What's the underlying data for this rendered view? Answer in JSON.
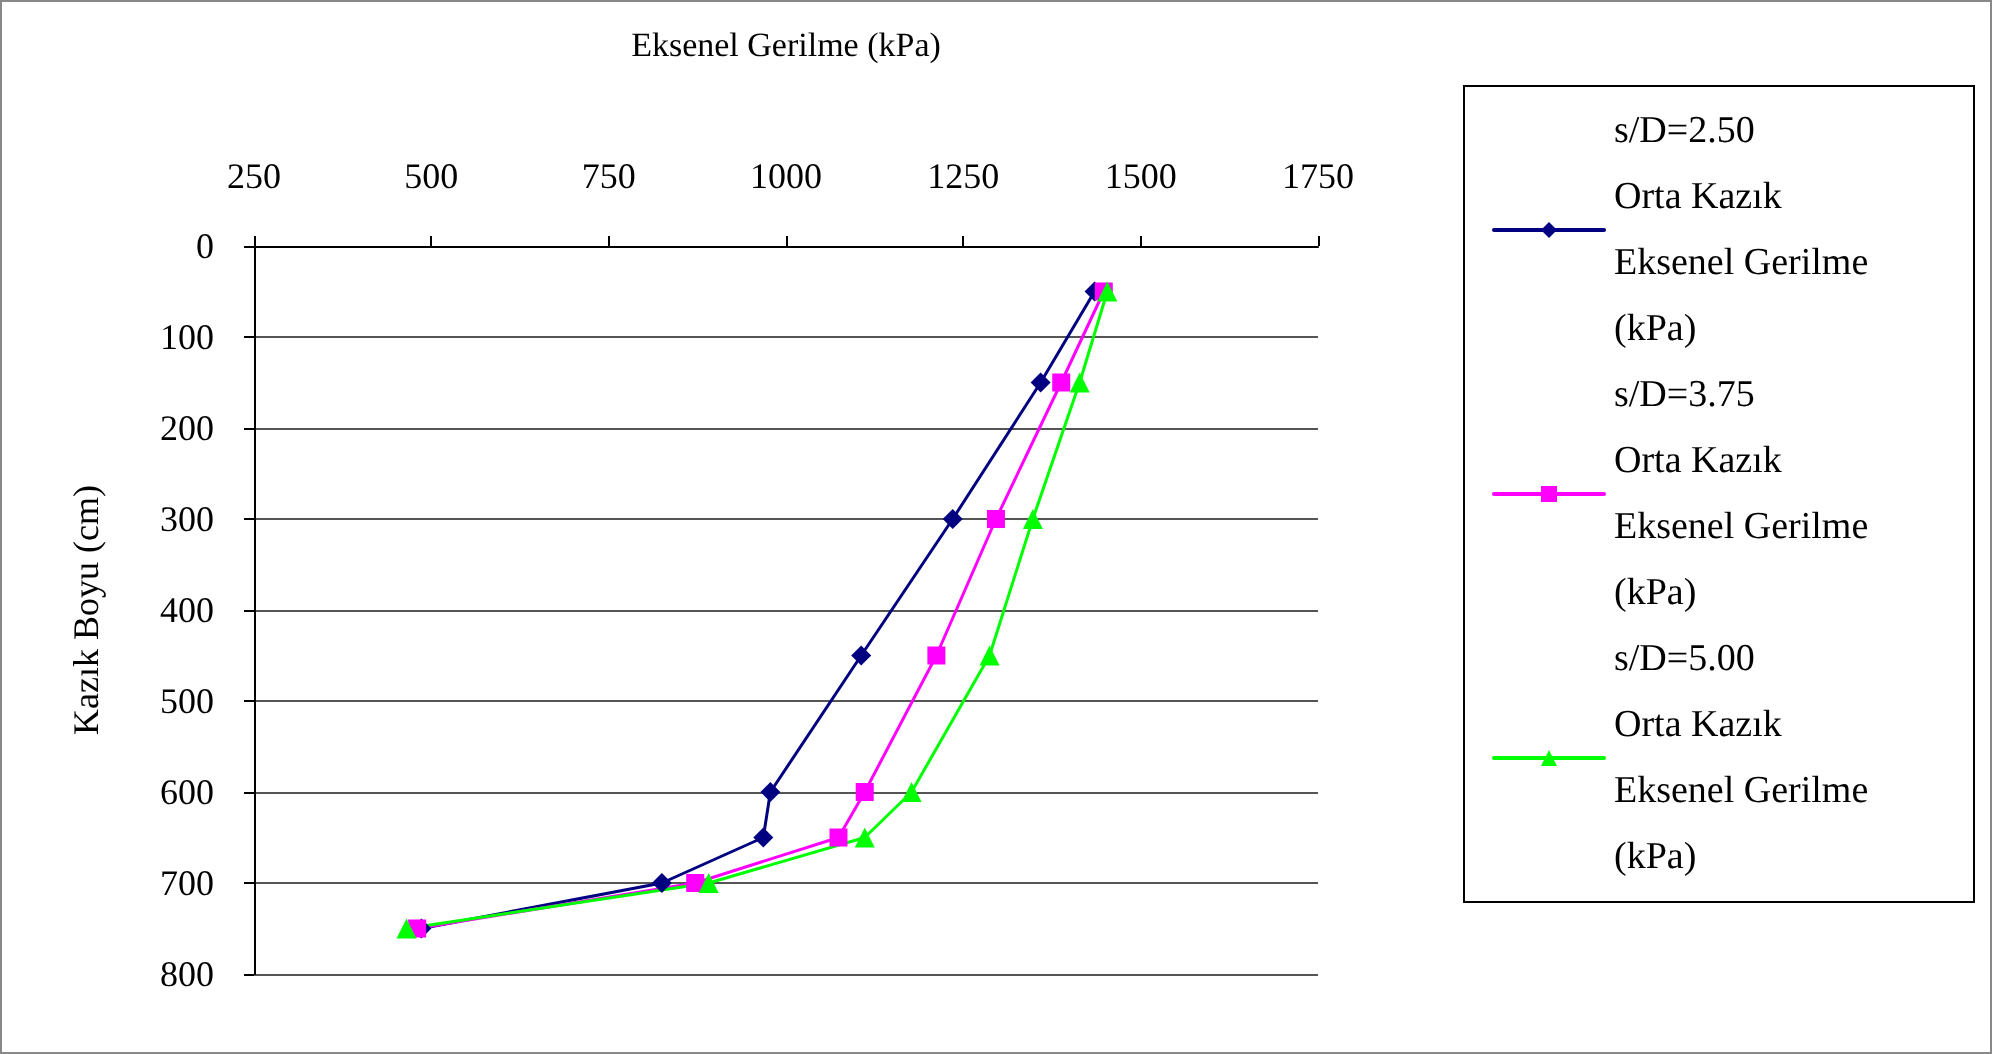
{
  "chart_data": {
    "type": "line",
    "xlabel": "Eksenel Gerilme (kPa)",
    "ylabel": "Kazık Boyu (cm)",
    "series": [
      {
        "name": "s/D=2.50 Orta Kazık Eksenel Gerilme (kPa)",
        "color": "#000080",
        "marker": "diamond",
        "x": [
          1435,
          1359,
          1235,
          1106,
          978,
          968,
          825,
          486
        ],
        "values": [
          50,
          150,
          300,
          450,
          600,
          650,
          700,
          750
        ]
      },
      {
        "name": "s/D=3.75 Orta Kazık Eksenel Gerilme (kPa)",
        "color": "#ff00ff",
        "marker": "square",
        "x": [
          1448,
          1388,
          1296,
          1212,
          1111,
          1074,
          872,
          480
        ],
        "values": [
          50,
          150,
          300,
          450,
          600,
          650,
          700,
          750
        ]
      },
      {
        "name": "s/D=5.00 Orta Kazık Eksenel Gerilme (kPa)",
        "color": "#00ff00",
        "marker": "triangle",
        "x": [
          1453,
          1414,
          1348,
          1287,
          1177,
          1111,
          891,
          465
        ],
        "values": [
          50,
          150,
          300,
          450,
          600,
          650,
          700,
          750
        ]
      }
    ],
    "xlim": [
      250,
      1750
    ],
    "xticks": [
      250,
      500,
      750,
      1000,
      1250,
      1500,
      1750
    ],
    "ylim": [
      800,
      0
    ],
    "yticks": [
      0,
      100,
      200,
      300,
      400,
      500,
      600,
      700,
      800
    ],
    "grid": "y",
    "legend": "right",
    "line_style": "solid"
  }
}
